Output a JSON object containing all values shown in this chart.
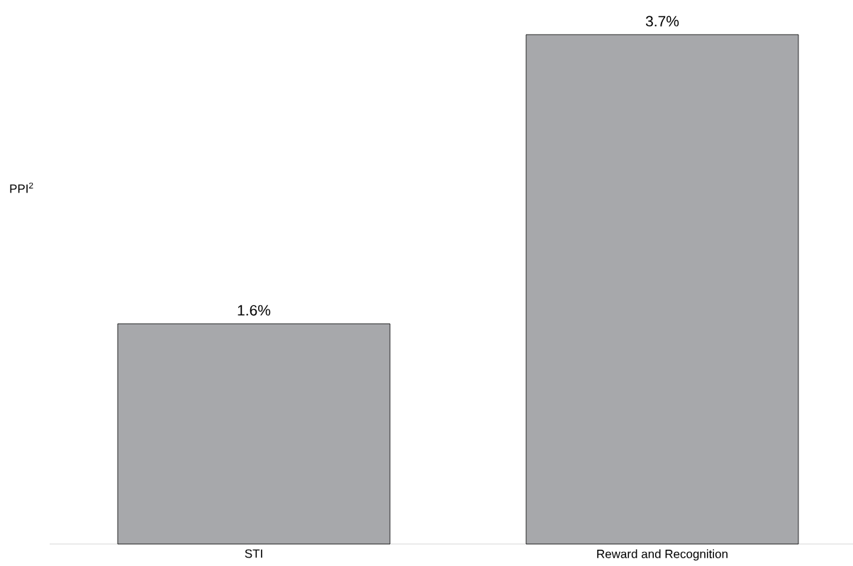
{
  "chart_data": {
    "type": "bar",
    "ylabel": "PPI$^{2}$",
    "categories": [
      "STI",
      "Reward and Recognition"
    ],
    "values": [
      1.6,
      3.7
    ],
    "value_labels": [
      "1.6%",
      "3.7%"
    ],
    "color": "#a7a8ab"
  }
}
